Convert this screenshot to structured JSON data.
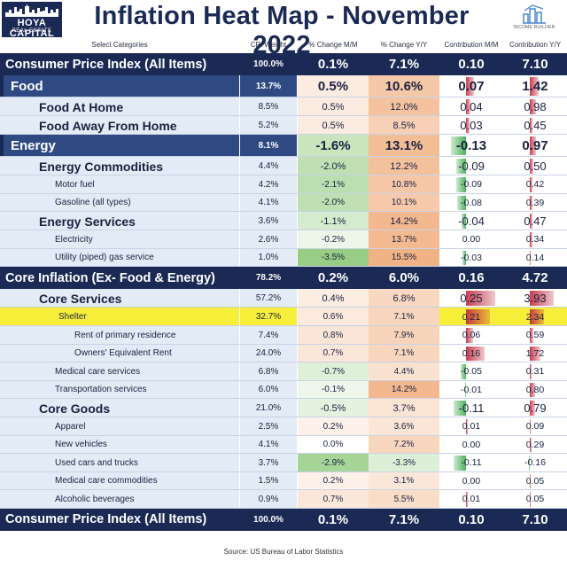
{
  "header": {
    "logo_line1": "HOYA CAPITAL",
    "logo_line2": "REAL ESTATE",
    "title": "Inflation Heat Map - November 2022",
    "badge_text": "INCOME BUILDER"
  },
  "columns": {
    "category": "Select Categories",
    "weight": "CPI Weight",
    "mm": "% Change M/M",
    "yy": "% Change Y/Y",
    "cmm": "Contribution M/M",
    "cyy": "Contribution Y/Y"
  },
  "colors": {
    "navy": "#1b2a55",
    "positive_heat": "#f4c6a6",
    "negative_heat": "#b9dcae",
    "contribution_positive": "#c0283c",
    "contribution_negative": "#3aa84a",
    "highlight": "#f7ee3a"
  },
  "chart_data": {
    "type": "table",
    "title": "Inflation Heat Map - November 2022",
    "source": "Source: US Bureau of Labor Statistics",
    "rows": [
      {
        "category": "Consumer Price Index (All Items)",
        "level": "total",
        "weight": "100.0%",
        "mm": "0.1%",
        "yy": "7.1%",
        "cmm": "0.10",
        "cyy": "7.10"
      },
      {
        "category": "Food",
        "level": "lvl1",
        "weight": "13.7%",
        "mm": "0.5%",
        "yy": "10.6%",
        "cmm": "0.07",
        "cyy": "1.42"
      },
      {
        "category": "Food At Home",
        "level": "lvl2",
        "weight": "8.5%",
        "mm": "0.5%",
        "yy": "12.0%",
        "cmm": "0.04",
        "cyy": "0.98"
      },
      {
        "category": "Food Away From Home",
        "level": "lvl2",
        "weight": "5.2%",
        "mm": "0.5%",
        "yy": "8.5%",
        "cmm": "0.03",
        "cyy": "0.45"
      },
      {
        "category": "Energy",
        "level": "lvl1",
        "weight": "8.1%",
        "mm": "-1.6%",
        "yy": "13.1%",
        "cmm": "-0.13",
        "cyy": "0.97"
      },
      {
        "category": "Energy Commodities",
        "level": "lvl2",
        "weight": "4.4%",
        "mm": "-2.0%",
        "yy": "12.2%",
        "cmm": "-0.09",
        "cyy": "0.50"
      },
      {
        "category": "Motor fuel",
        "level": "lvl3",
        "weight": "4.2%",
        "mm": "-2.1%",
        "yy": "10.8%",
        "cmm": "-0.09",
        "cyy": "0.42"
      },
      {
        "category": "Gasoline (all types)",
        "level": "lvl3",
        "weight": "4.1%",
        "mm": "-2.0%",
        "yy": "10.1%",
        "cmm": "-0.08",
        "cyy": "0.39"
      },
      {
        "category": "Energy Services",
        "level": "lvl2",
        "weight": "3.6%",
        "mm": "-1.1%",
        "yy": "14.2%",
        "cmm": "-0.04",
        "cyy": "0.47"
      },
      {
        "category": "Electricity",
        "level": "lvl3",
        "weight": "2.6%",
        "mm": "-0.2%",
        "yy": "13.7%",
        "cmm": "0.00",
        "cyy": "0.34"
      },
      {
        "category": "Utility (piped) gas service",
        "level": "lvl3",
        "weight": "1.0%",
        "mm": "-3.5%",
        "yy": "15.5%",
        "cmm": "-0.03",
        "cyy": "0.14"
      },
      {
        "category": "Core Inflation (Ex- Food & Energy)",
        "level": "total",
        "weight": "78.2%",
        "mm": "0.2%",
        "yy": "6.0%",
        "cmm": "0.16",
        "cyy": "4.72"
      },
      {
        "category": "Core Services",
        "level": "lvl2",
        "weight": "57.2%",
        "mm": "0.4%",
        "yy": "6.8%",
        "cmm": "0.25",
        "cyy": "3.93"
      },
      {
        "category": "Shelter",
        "level": "lvl3hl",
        "weight": "32.7%",
        "mm": "0.6%",
        "yy": "7.1%",
        "cmm": "0.21",
        "cyy": "2.34"
      },
      {
        "category": "Rent of primary residence",
        "level": "lvl4",
        "weight": "7.4%",
        "mm": "0.8%",
        "yy": "7.9%",
        "cmm": "0.06",
        "cyy": "0.59"
      },
      {
        "category": "Owners' Equivalent Rent",
        "level": "lvl4",
        "weight": "24.0%",
        "mm": "0.7%",
        "yy": "7.1%",
        "cmm": "0.16",
        "cyy": "1.72"
      },
      {
        "category": "Medical care services",
        "level": "lvl3",
        "weight": "6.8%",
        "mm": "-0.7%",
        "yy": "4.4%",
        "cmm": "-0.05",
        "cyy": "0.31"
      },
      {
        "category": "Transportation services",
        "level": "lvl3",
        "weight": "6.0%",
        "mm": "-0.1%",
        "yy": "14.2%",
        "cmm": "-0.01",
        "cyy": "0.80"
      },
      {
        "category": "Core Goods",
        "level": "lvl2",
        "weight": "21.0%",
        "mm": "-0.5%",
        "yy": "3.7%",
        "cmm": "-0.11",
        "cyy": "0.79"
      },
      {
        "category": "Apparel",
        "level": "lvl3",
        "weight": "2.5%",
        "mm": "0.2%",
        "yy": "3.6%",
        "cmm": "0.01",
        "cyy": "0.09"
      },
      {
        "category": "New vehicles",
        "level": "lvl3",
        "weight": "4.1%",
        "mm": "0.0%",
        "yy": "7.2%",
        "cmm": "0.00",
        "cyy": "0.29"
      },
      {
        "category": "Used cars and trucks",
        "level": "lvl3",
        "weight": "3.7%",
        "mm": "-2.9%",
        "yy": "-3.3%",
        "cmm": "-0.11",
        "cyy": "-0.16"
      },
      {
        "category": "Medical care commodities",
        "level": "lvl3",
        "weight": "1.5%",
        "mm": "0.2%",
        "yy": "3.1%",
        "cmm": "0.00",
        "cyy": "0.05"
      },
      {
        "category": "Alcoholic beverages",
        "level": "lvl3",
        "weight": "0.9%",
        "mm": "0.7%",
        "yy": "5.5%",
        "cmm": "0.01",
        "cyy": "0.05"
      },
      {
        "category": "Consumer Price Index (All Items)",
        "level": "total",
        "weight": "100.0%",
        "mm": "0.1%",
        "yy": "7.1%",
        "cmm": "0.10",
        "cyy": "7.10"
      }
    ]
  }
}
